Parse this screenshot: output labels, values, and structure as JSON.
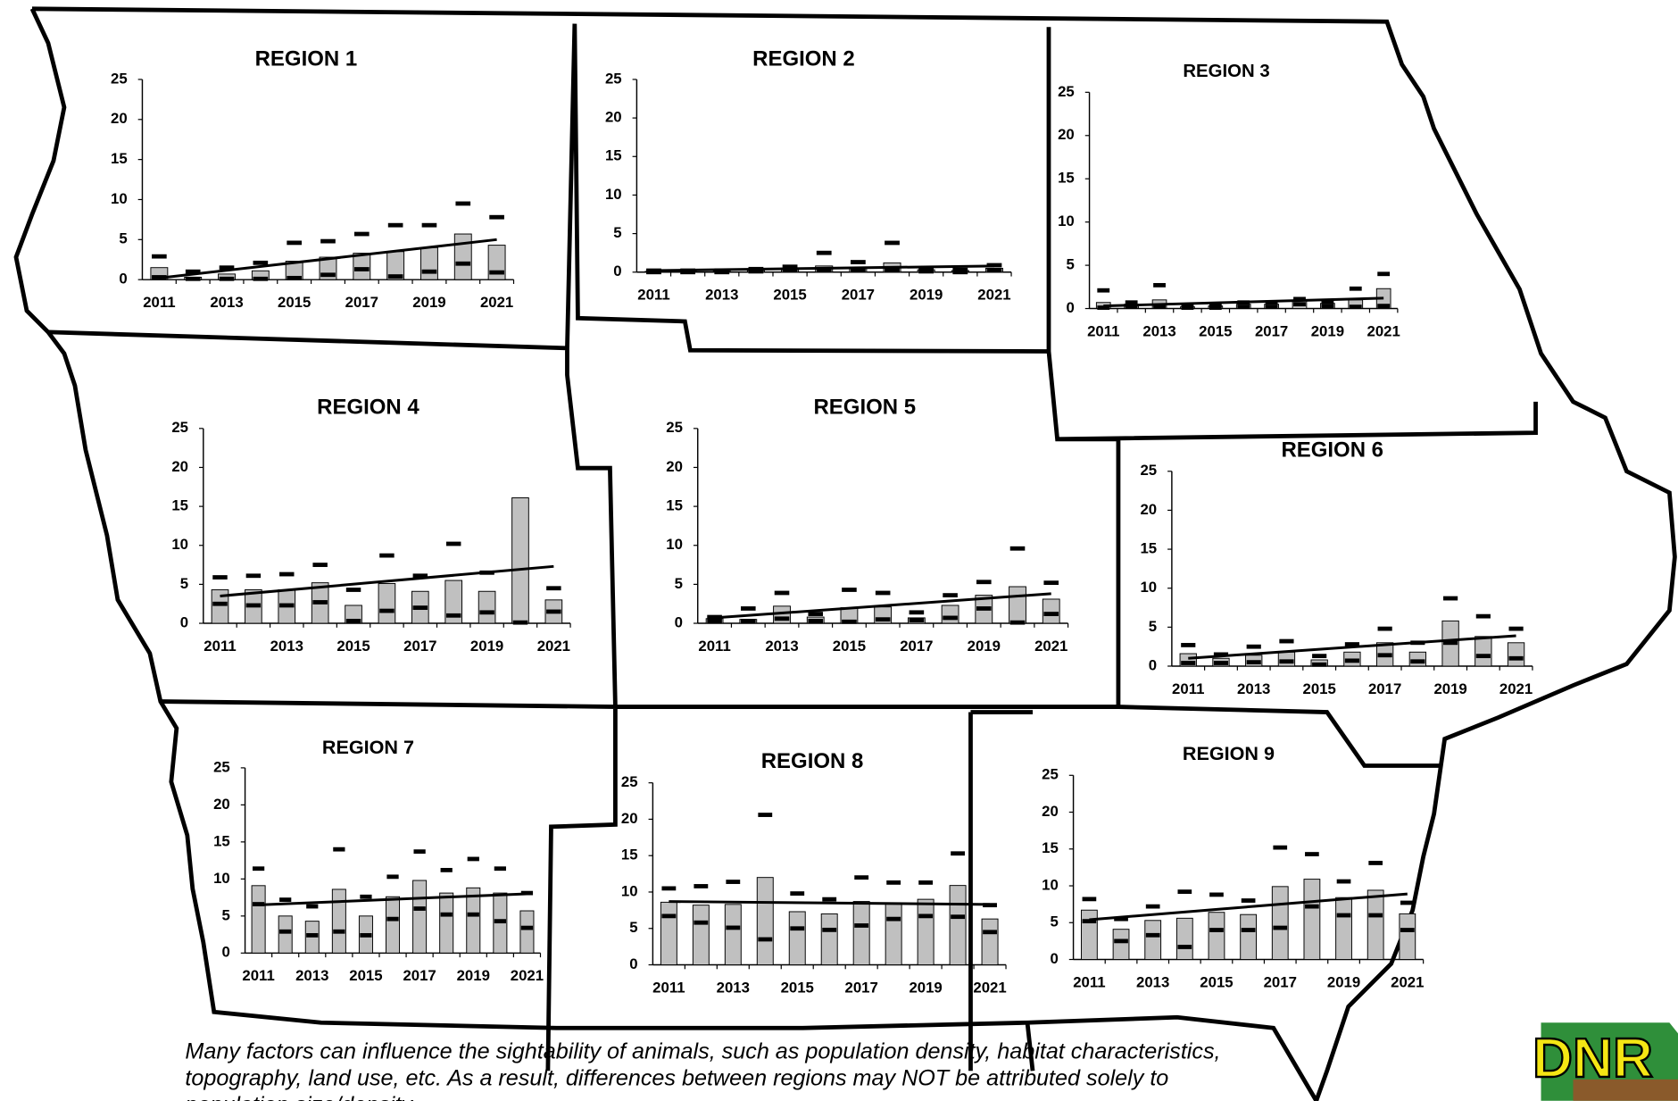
{
  "chart_data": [
    {
      "type": "bar",
      "title": "REGION 1",
      "categories": [
        "2011",
        null,
        "2013",
        null,
        "2015",
        null,
        "2017",
        null,
        "2019",
        null,
        "2021"
      ],
      "ylim": [
        0,
        25
      ],
      "yticks": [
        0,
        5,
        10,
        15,
        20,
        25
      ],
      "series": [
        {
          "color": "#c0c0c0",
          "values": [
            1.5,
            0.3,
            0.7,
            1.1,
            2.3,
            2.8,
            3.3,
            3.5,
            4.0,
            5.7,
            4.3
          ]
        },
        {
          "color": "#000000",
          "values": [
            2.9,
            1.0,
            1.5,
            2.1,
            4.6,
            4.8,
            5.7,
            6.8,
            6.8,
            9.5,
            7.8
          ]
        },
        {
          "color": "#000000",
          "values": [
            0.3,
            0.1,
            0.1,
            0.1,
            0.2,
            0.6,
            1.3,
            0.4,
            1.0,
            2.0,
            0.9
          ]
        }
      ],
      "trend": [
        0.2,
        5.0
      ]
    },
    {
      "type": "bar",
      "title": "REGION 2",
      "categories": [
        "2011",
        null,
        "2013",
        null,
        "2015",
        null,
        "2017",
        null,
        "2019",
        null,
        "2021"
      ],
      "ylim": [
        0,
        25
      ],
      "yticks": [
        0,
        5,
        10,
        15,
        20,
        25
      ],
      "series": [
        {
          "color": "#c0c0c0",
          "values": [
            0.1,
            0.1,
            0.1,
            0.2,
            0.4,
            0.8,
            0.5,
            1.2,
            0.3,
            0.2,
            0.5
          ]
        },
        {
          "color": "#000000",
          "values": [
            0.2,
            0.2,
            0.2,
            0.4,
            0.7,
            2.5,
            1.3,
            3.8,
            0.5,
            0.3,
            0.9
          ]
        },
        {
          "color": "#000000",
          "values": [
            0,
            0,
            0,
            0.1,
            0.2,
            0.2,
            0.2,
            0.3,
            0.1,
            0,
            0.2
          ]
        }
      ],
      "trend": [
        0.2,
        0.8
      ]
    },
    {
      "type": "bar",
      "title": "REGION 3",
      "categories": [
        "2011",
        null,
        "2013",
        null,
        "2015",
        null,
        "2017",
        null,
        "2019",
        null,
        "2021"
      ],
      "ylim": [
        0,
        25
      ],
      "yticks": [
        0,
        5,
        10,
        15,
        20,
        25
      ],
      "series": [
        {
          "color": "#c0c0c0",
          "values": [
            0.7,
            0.5,
            1.0,
            0.2,
            0.3,
            0.5,
            0.5,
            0.9,
            0.6,
            1.0,
            2.3
          ]
        },
        {
          "color": "#000000",
          "values": [
            2.1,
            0.7,
            2.7,
            0.3,
            0.4,
            0.7,
            0.7,
            1.1,
            0.8,
            2.3,
            4.0
          ]
        },
        {
          "color": "#000000",
          "values": [
            0.1,
            0.2,
            0.2,
            0.1,
            0.1,
            0.2,
            0.2,
            0.5,
            0.3,
            0.2,
            0.3
          ]
        }
      ],
      "trend": [
        0.3,
        1.2
      ]
    },
    {
      "type": "bar",
      "title": "REGION 4",
      "categories": [
        "2011",
        null,
        "2013",
        null,
        "2015",
        null,
        "2017",
        null,
        "2019",
        null,
        "2021"
      ],
      "ylim": [
        0,
        25
      ],
      "yticks": [
        0,
        5,
        10,
        15,
        20,
        25
      ],
      "series": [
        {
          "color": "#c0c0c0",
          "values": [
            4.3,
            4.3,
            4.3,
            5.2,
            2.3,
            5.1,
            4.1,
            5.5,
            4.1,
            16.1,
            3.0
          ]
        },
        {
          "color": "#000000",
          "values": [
            5.9,
            6.1,
            6.3,
            7.5,
            4.3,
            8.7,
            6.1,
            10.2,
            6.5,
            null,
            4.5
          ]
        },
        {
          "color": "#000000",
          "values": [
            2.5,
            2.3,
            2.3,
            2.7,
            0.3,
            1.6,
            2.0,
            1.0,
            1.4,
            0.1,
            1.5
          ]
        }
      ],
      "trend": [
        3.5,
        7.3
      ]
    },
    {
      "type": "bar",
      "title": "REGION 5",
      "categories": [
        "2011",
        null,
        "2013",
        null,
        "2015",
        null,
        "2017",
        null,
        "2019",
        null,
        "2021"
      ],
      "ylim": [
        0,
        25
      ],
      "yticks": [
        0,
        5,
        10,
        15,
        20,
        25
      ],
      "series": [
        {
          "color": "#c0c0c0",
          "values": [
            0.6,
            0.5,
            2.2,
            0.8,
            2.0,
            2.1,
            0.7,
            2.3,
            3.6,
            4.7,
            3.1
          ]
        },
        {
          "color": "#000000",
          "values": [
            0.8,
            1.9,
            3.9,
            1.2,
            4.3,
            3.9,
            1.4,
            3.6,
            5.3,
            9.6,
            5.2
          ]
        },
        {
          "color": "#000000",
          "values": [
            0.3,
            0.3,
            0.6,
            0.3,
            0.2,
            0.5,
            0.4,
            0.7,
            1.9,
            0.1,
            1.2
          ]
        }
      ],
      "trend": [
        0.7,
        3.8
      ]
    },
    {
      "type": "bar",
      "title": "REGION 6",
      "categories": [
        "2011",
        null,
        "2013",
        null,
        "2015",
        null,
        "2017",
        null,
        "2019",
        null,
        "2021"
      ],
      "ylim": [
        0,
        25
      ],
      "yticks": [
        0,
        5,
        10,
        15,
        20,
        25
      ],
      "series": [
        {
          "color": "#c0c0c0",
          "values": [
            1.6,
            1.0,
            1.4,
            1.8,
            0.8,
            1.8,
            3.0,
            1.8,
            5.8,
            3.8,
            3.0
          ]
        },
        {
          "color": "#000000",
          "values": [
            2.7,
            1.5,
            2.5,
            3.2,
            1.3,
            2.8,
            4.8,
            3.0,
            8.7,
            6.4,
            4.8
          ]
        },
        {
          "color": "#000000",
          "values": [
            0.4,
            0.4,
            0.5,
            0.6,
            0.2,
            0.7,
            1.4,
            0.6,
            3.0,
            1.3,
            1.0
          ]
        }
      ],
      "trend": [
        1.0,
        3.9
      ]
    },
    {
      "type": "bar",
      "title": "REGION 7",
      "categories": [
        "2011",
        null,
        "2013",
        null,
        "2015",
        null,
        "2017",
        null,
        "2019",
        null,
        "2021"
      ],
      "ylim": [
        0,
        25
      ],
      "yticks": [
        0,
        5,
        10,
        15,
        20,
        25
      ],
      "series": [
        {
          "color": "#c0c0c0",
          "values": [
            9.1,
            5.0,
            4.3,
            8.6,
            5.0,
            7.6,
            9.8,
            8.1,
            8.8,
            8.1,
            5.7
          ]
        },
        {
          "color": "#000000",
          "values": [
            11.4,
            7.2,
            6.3,
            14.0,
            7.6,
            10.3,
            13.7,
            11.2,
            12.7,
            11.4,
            8.1
          ]
        },
        {
          "color": "#000000",
          "values": [
            6.6,
            2.9,
            2.4,
            2.9,
            2.4,
            4.6,
            6.0,
            5.2,
            5.2,
            4.3,
            3.4
          ]
        }
      ],
      "trend": [
        6.5,
        8.0
      ]
    },
    {
      "type": "bar",
      "title": "REGION 8",
      "categories": [
        "2011",
        null,
        "2013",
        null,
        "2015",
        null,
        "2017",
        null,
        "2019",
        null,
        "2021"
      ],
      "ylim": [
        0,
        25
      ],
      "yticks": [
        0,
        5,
        10,
        15,
        20,
        25
      ],
      "series": [
        {
          "color": "#c0c0c0",
          "values": [
            8.6,
            8.2,
            8.3,
            12.0,
            7.3,
            7.0,
            8.7,
            8.5,
            9.0,
            10.9,
            6.3
          ]
        },
        {
          "color": "#000000",
          "values": [
            10.5,
            10.8,
            11.4,
            20.6,
            9.8,
            9.0,
            12.0,
            11.3,
            11.3,
            15.3,
            8.2
          ]
        },
        {
          "color": "#000000",
          "values": [
            6.7,
            5.8,
            5.1,
            3.5,
            5.0,
            4.8,
            5.4,
            6.3,
            6.7,
            6.6,
            4.5
          ]
        }
      ],
      "trend": [
        8.7,
        8.3
      ]
    },
    {
      "type": "bar",
      "title": "REGION 9",
      "categories": [
        "2011",
        null,
        "2013",
        null,
        "2015",
        null,
        "2017",
        null,
        "2019",
        null,
        "2021"
      ],
      "ylim": [
        0,
        25
      ],
      "yticks": [
        0,
        5,
        10,
        15,
        20,
        25
      ],
      "series": [
        {
          "color": "#c0c0c0",
          "values": [
            6.7,
            4.1,
            5.3,
            5.6,
            6.4,
            6.1,
            9.9,
            10.9,
            8.4,
            9.4,
            6.2
          ]
        },
        {
          "color": "#000000",
          "values": [
            8.2,
            5.5,
            7.2,
            9.2,
            8.8,
            8.0,
            15.2,
            14.3,
            10.6,
            13.1,
            7.7
          ]
        },
        {
          "color": "#000000",
          "values": [
            5.2,
            2.5,
            3.3,
            1.7,
            4.0,
            4.0,
            4.3,
            7.2,
            6.0,
            6.0,
            4.0
          ]
        }
      ],
      "trend": [
        5.4,
        8.9
      ]
    }
  ],
  "footnote": [
    "Many factors can influence the sightability of animals, such as population density, habitat characteristics,",
    "topography, land use, etc.  As a result, differences between regions may NOT be attributed solely to",
    "population size/density."
  ],
  "logo": "DNR"
}
